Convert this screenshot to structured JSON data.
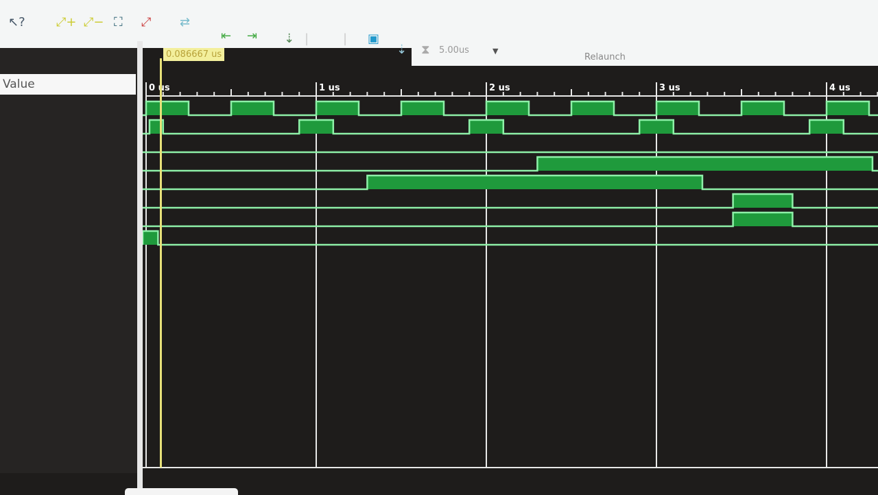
{
  "toolbar": {
    "icons": [
      "pointer-help-icon",
      "zoom-in-icon",
      "zoom-out-icon",
      "zoom-fit-icon",
      "go-to-cursor-icon",
      "swap-cursors-icon",
      "previous-transition-icon",
      "next-transition-icon",
      "add-marker-icon",
      "restart-icon",
      "run-all-icon",
      "run-for-icon",
      "break-icon"
    ],
    "run_time": "5.00us",
    "relaunch_label": "Relaunch"
  },
  "objects_panel": {
    "value_header": "Value"
  },
  "cursor": {
    "label": "0.086667 us",
    "time_us": 0.086667,
    "color": "#e8e27a"
  },
  "timeline": {
    "unit": "us",
    "tick_labels": [
      "0 us",
      "1 us",
      "2 us",
      "3 us",
      "4 us"
    ],
    "range_us": [
      0,
      4.27
    ]
  },
  "colors": {
    "wave_line": "#8ef0a8",
    "wave_fill": "#1f9a3c",
    "background": "#1e1c1b",
    "grid": "#e8e8e8"
  },
  "signals": [
    {
      "high": [
        [
          0,
          0.25
        ],
        [
          0.5,
          0.75
        ],
        [
          1.0,
          1.25
        ],
        [
          1.5,
          1.75
        ],
        [
          2.0,
          2.25
        ],
        [
          2.5,
          2.75
        ],
        [
          3.0,
          3.25
        ],
        [
          3.5,
          3.75
        ],
        [
          4.0,
          4.25
        ]
      ]
    },
    {
      "high": [
        [
          0.02,
          0.1
        ],
        [
          0.9,
          1.1
        ],
        [
          1.9,
          2.1
        ],
        [
          2.9,
          3.1
        ],
        [
          3.9,
          4.1
        ]
      ]
    },
    {
      "high": []
    },
    {
      "high": [
        [
          2.3,
          4.27
        ]
      ]
    },
    {
      "high": [
        [
          1.3,
          3.27
        ]
      ]
    },
    {
      "high": [
        [
          3.45,
          3.8
        ]
      ]
    },
    {
      "high": [
        [
          3.45,
          3.8
        ]
      ]
    },
    {
      "high": [
        [
          -0.03,
          0.07
        ]
      ]
    }
  ]
}
